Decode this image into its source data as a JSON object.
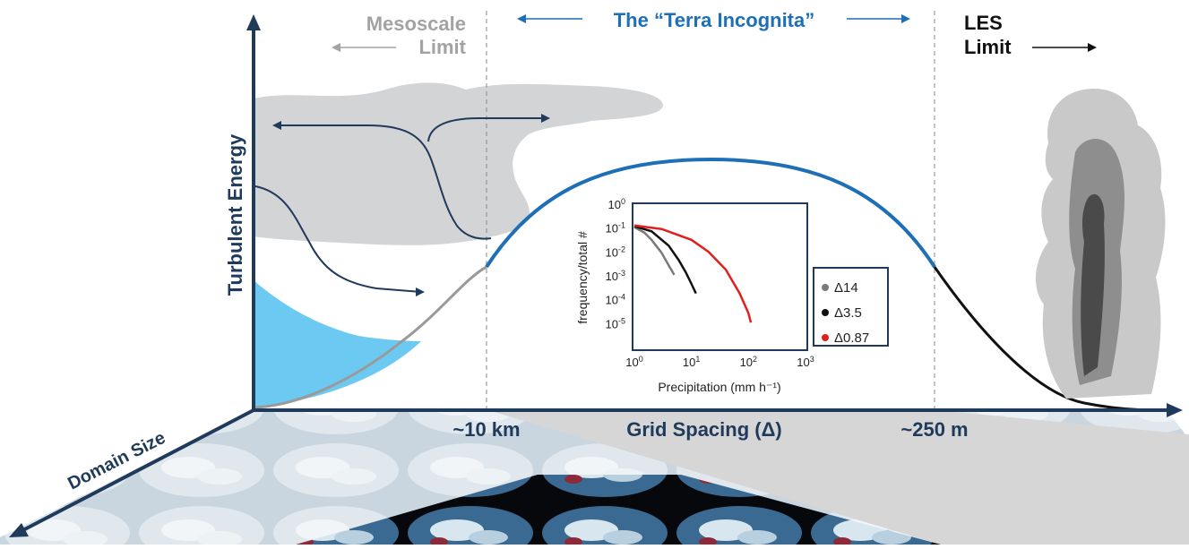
{
  "headers": {
    "mesoscale_line1": "Mesoscale",
    "mesoscale_line2": "Limit",
    "terra_incognita": "The “Terra Incognita”",
    "les_line1": "LES",
    "les_line2": "Limit"
  },
  "axes": {
    "y_label": "Turbulent Energy",
    "x_label": "Grid Spacing (Δ)",
    "depth_label": "Domain Size",
    "x_marker_left": "~10 km",
    "x_marker_right": "~250 m"
  },
  "colors": {
    "curve_blue": "#1f6fb6",
    "curve_gray": "#9a9a9a",
    "curve_black": "#111111",
    "axis": "#1f3a5a",
    "cloud_gray": "#d3d4d6",
    "water_blue": "#6cc9f2"
  },
  "chart_data": {
    "type": "line",
    "title": "",
    "xlabel": "Precipitation (mm h⁻¹)",
    "ylabel": "frequency/total #",
    "xscale": "log",
    "yscale": "log",
    "xlim": [
      1,
      1000
    ],
    "ylim": [
      1e-06,
      1
    ],
    "x_ticks": [
      {
        "base": "10",
        "exp": "0"
      },
      {
        "base": "10",
        "exp": "1"
      },
      {
        "base": "10",
        "exp": "2"
      },
      {
        "base": "10",
        "exp": "3"
      }
    ],
    "y_ticks": [
      {
        "base": "10",
        "exp": "0"
      },
      {
        "base": "10",
        "exp": "-1"
      },
      {
        "base": "10",
        "exp": "-2"
      },
      {
        "base": "10",
        "exp": "-3"
      },
      {
        "base": "10",
        "exp": "-4"
      },
      {
        "base": "10",
        "exp": "-5"
      }
    ],
    "legend_position": "right",
    "series": [
      {
        "name": "Δ14",
        "color": "#7a7a7a",
        "x": [
          1,
          1.5,
          2,
          3,
          4,
          5
        ],
        "y": [
          0.12,
          0.07,
          0.035,
          0.01,
          0.003,
          0.0012
        ]
      },
      {
        "name": "Δ3.5",
        "color": "#111111",
        "x": [
          1,
          2,
          4,
          6,
          8,
          10,
          12
        ],
        "y": [
          0.13,
          0.08,
          0.02,
          0.005,
          0.0015,
          0.0005,
          0.0002
        ]
      },
      {
        "name": "Δ0.87",
        "color": "#e0201e",
        "x": [
          1,
          3,
          10,
          20,
          40,
          70,
          100,
          110
        ],
        "y": [
          0.14,
          0.1,
          0.035,
          0.011,
          0.002,
          0.0002,
          3e-05,
          1.2e-05
        ]
      }
    ]
  }
}
